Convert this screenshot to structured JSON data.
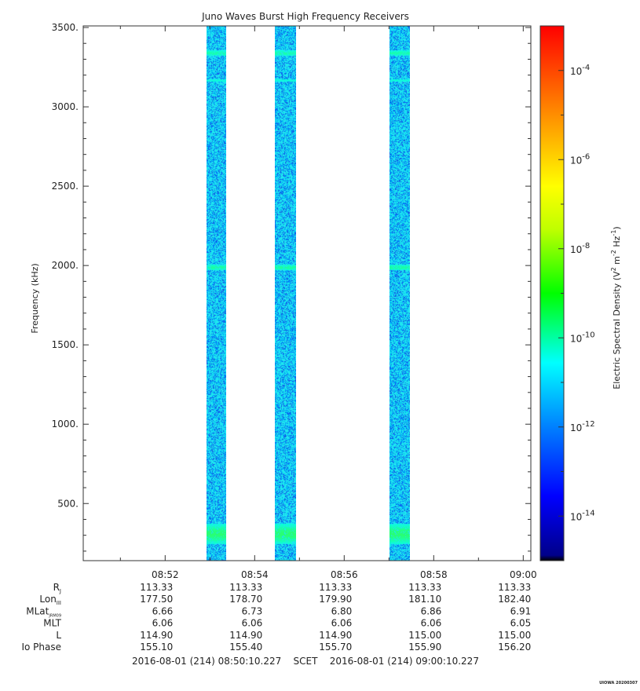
{
  "chart_data": {
    "type": "heatmap",
    "title": "Juno Waves Burst High Frequency Receivers",
    "ylabel": "Frequency (kHz)",
    "ylim": [
      140,
      3510
    ],
    "yticks": [
      500,
      1000,
      1500,
      2000,
      2500,
      3000,
      3500
    ],
    "ytick_labels": [
      "500.",
      "1000.",
      "1500.",
      "2000.",
      "2500.",
      "3000.",
      "3500."
    ],
    "xlim": [
      "08:50:10.227",
      "09:00:10.227"
    ],
    "xtick_labels": [
      "08:52",
      "08:54",
      "08:56",
      "08:58",
      "09:00"
    ],
    "xtick_minutes": [
      1.83,
      3.83,
      5.83,
      7.83,
      9.83
    ],
    "bursts": [
      {
        "start_min": 2.75,
        "end_min": 3.2
      },
      {
        "start_min": 4.28,
        "end_min": 4.75
      },
      {
        "start_min": 6.85,
        "end_min": 7.3
      }
    ],
    "enhanced_bands_khz": [
      {
        "center": 3340,
        "strength": 0.6
      },
      {
        "center": 3170,
        "strength": 0.3
      },
      {
        "center": 1990,
        "strength": 0.7
      },
      {
        "center": 310,
        "strength": 1.0
      }
    ],
    "colorbar": {
      "label": "Electric Spectral Density",
      "unit_base": "(V",
      "unit_sup1": "2",
      "unit_mid1": " m",
      "unit_sup2": "-2",
      "unit_mid2": " Hz",
      "unit_sup3": "-1",
      "unit_end": ")",
      "log_min": -15,
      "log_max": -3,
      "tick_exponents": [
        -4,
        -6,
        -8,
        -10,
        -12,
        -14
      ],
      "tick_base": "10",
      "tick_exp_labels": [
        "-4",
        "-6",
        "-8",
        "-10",
        "-12",
        "-14"
      ],
      "colors": [
        "#000080",
        "#0000ff",
        "#0090ff",
        "#00ffff",
        "#00ff00",
        "#ffff00",
        "#ff8000",
        "#ff0000"
      ]
    },
    "ephemeris": {
      "rows": [
        {
          "label_main": "R",
          "label_sub": "J",
          "values": [
            "113.33",
            "113.33",
            "113.33",
            "113.33",
            "113.33"
          ]
        },
        {
          "label_main": "Lon",
          "label_sub": "III",
          "values": [
            "177.50",
            "178.70",
            "179.90",
            "181.10",
            "182.40"
          ]
        },
        {
          "label_main": "MLat",
          "label_sub": "JRM09",
          "values": [
            "6.66",
            "6.73",
            "6.80",
            "6.86",
            "6.91"
          ]
        },
        {
          "label_main": "MLT",
          "label_sub": "",
          "values": [
            "6.06",
            "6.06",
            "6.06",
            "6.06",
            "6.05"
          ]
        },
        {
          "label_main": "L",
          "label_sub": "",
          "values": [
            "114.90",
            "114.90",
            "114.90",
            "115.00",
            "115.00"
          ]
        },
        {
          "label_main": "Io Phase",
          "label_sub": "",
          "values": [
            "155.10",
            "155.40",
            "155.70",
            "155.90",
            "156.20"
          ]
        }
      ]
    },
    "time_range_text": "2016-08-01 (214) 08:50:10.227    SCET    2016-08-01 (214) 09:00:10.227",
    "footer_tag": "UIOWA 20200307"
  }
}
